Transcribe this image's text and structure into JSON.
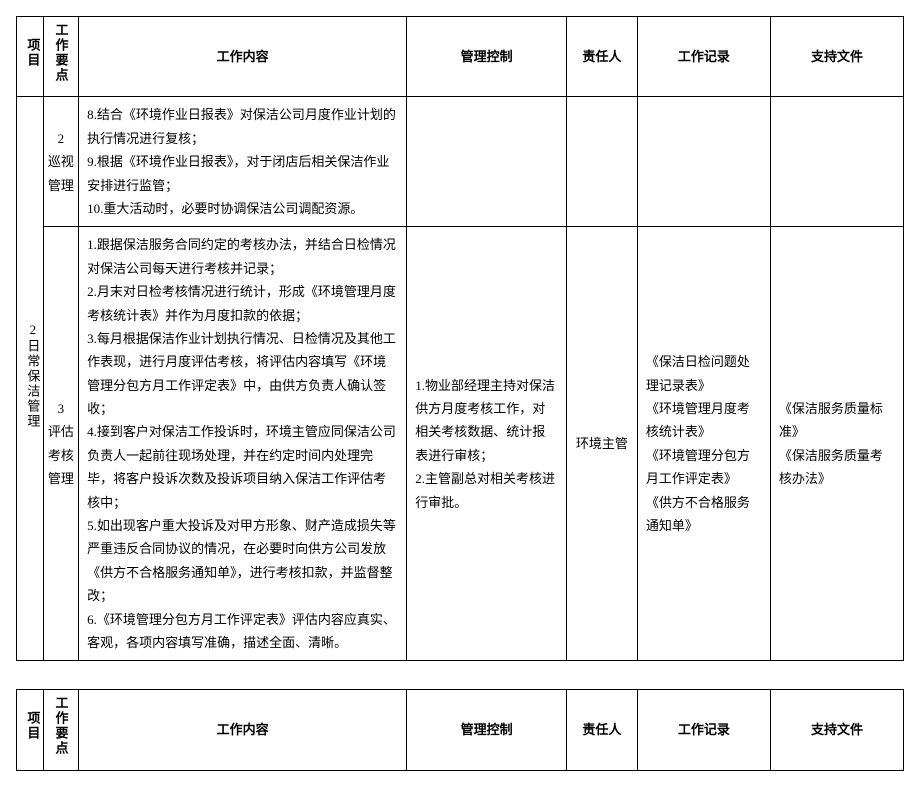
{
  "headers": {
    "project": "项目",
    "point": "工作要点",
    "content": "工作内容",
    "control": "管理控制",
    "responsible": "责任人",
    "record": "工作记录",
    "support": "支持文件"
  },
  "projectLabel": "2日常保洁管理",
  "row1": {
    "point": "2\n巡视管理",
    "content": "8.结合《环境作业日报表》对保洁公司月度作业计划的执行情况进行复核；\n9.根据《环境作业日报表》，对于闭店后相关保洁作业安排进行监管；\n10.重大活动时，必要时协调保洁公司调配资源。"
  },
  "row2": {
    "point": "3\n评估考核管理",
    "content": "1.跟据保洁服务合同约定的考核办法，并结合日检情况对保洁公司每天进行考核并记录；\n2.月末对日检考核情况进行统计，形成《环境管理月度考核统计表》并作为月度扣款的依据；\n3.每月根据保洁作业计划执行情况、日检情况及其他工作表现，进行月度评估考核，将评估内容填写《环境管理分包方月工作评定表》中，由供方负责人确认签收；\n4.接到客户对保洁工作投诉时，环境主管应同保洁公司负责人一起前往现场处理，并在约定时间内处理完毕，将客户投诉次数及投诉项目纳入保洁工作评估考核中；\n5.如出现客户重大投诉及对甲方形象、财产造成损失等严重违反合同协议的情况，在必要时向供方公司发放《供方不合格服务通知单》，进行考核扣款，并监督整改；\n6.《环境管理分包方月工作评定表》评估内容应真实、客观，各项内容填写准确，描述全面、清晰。",
    "control": "1.物业部经理主持对保洁供方月度考核工作，对相关考核数据、统计报表进行审核；\n2.主管副总对相关考核进行审批。",
    "responsible": "环境主管",
    "record": "《保洁日检问题处理记录表》\n《环境管理月度考核统计表》\n《环境管理分包方月工作评定表》\n《供方不合格服务通知单》",
    "support": "《保洁服务质量标准》\n《保洁服务质量考核办法》"
  }
}
